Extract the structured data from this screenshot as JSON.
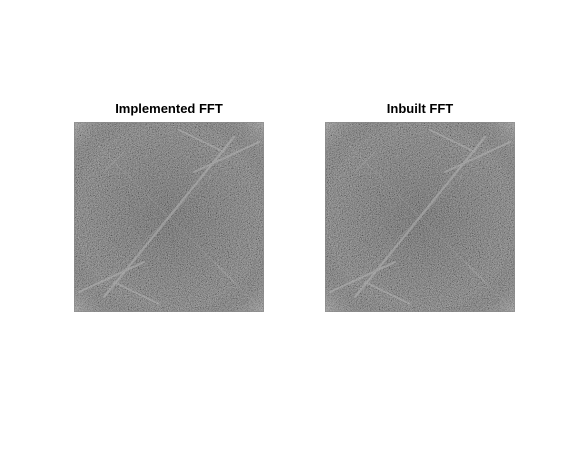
{
  "figure": {
    "panels": [
      {
        "title": "Implemented FFT"
      },
      {
        "title": "Inbuilt FFT"
      }
    ]
  }
}
